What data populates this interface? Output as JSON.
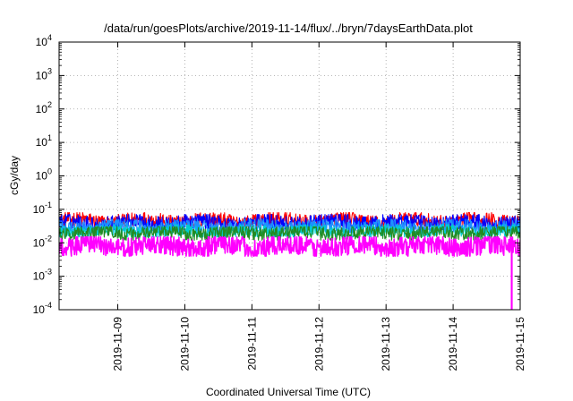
{
  "chart_data": {
    "type": "line",
    "title": "/data/run/goesPlots/archive/2019-11-14/flux/../bryn/7daysEarthData.plot",
    "xlabel": "Coordinated Universal Time (UTC)",
    "ylabel": "cGy/day",
    "yscale": "log",
    "ylim": [
      0.0001,
      10000
    ],
    "y_ticks": [
      {
        "base": "10",
        "exp": "-4",
        "value": 0.0001
      },
      {
        "base": "10",
        "exp": "-3",
        "value": 0.001
      },
      {
        "base": "10",
        "exp": "-2",
        "value": 0.01
      },
      {
        "base": "10",
        "exp": "-1",
        "value": 0.1
      },
      {
        "base": "10",
        "exp": "0",
        "value": 1
      },
      {
        "base": "10",
        "exp": "1",
        "value": 10
      },
      {
        "base": "10",
        "exp": "2",
        "value": 100
      },
      {
        "base": "10",
        "exp": "3",
        "value": 1000
      },
      {
        "base": "10",
        "exp": "4",
        "value": 10000
      }
    ],
    "xlim": [
      "2019-11-08T03:00",
      "2019-11-15T00:00"
    ],
    "x_ticks": [
      "2019-11-09",
      "2019-11-10",
      "2019-11-11",
      "2019-11-12",
      "2019-11-13",
      "2019-11-14",
      "2019-11-15"
    ],
    "grid": true,
    "legend": "none",
    "series": [
      {
        "color": "#ff0000",
        "typical_y": 0.045,
        "range_y": [
          0.03,
          0.08
        ]
      },
      {
        "color": "#0000ff",
        "typical_y": 0.04,
        "range_y": [
          0.025,
          0.07
        ]
      },
      {
        "color": "#1e90ff",
        "typical_y": 0.03,
        "range_y": [
          0.02,
          0.05
        ]
      },
      {
        "color": "#00ced1",
        "typical_y": 0.022,
        "range_y": [
          0.015,
          0.035
        ]
      },
      {
        "color": "#228b22",
        "typical_y": 0.02,
        "range_y": [
          0.012,
          0.03
        ]
      },
      {
        "color": "#ff00ff",
        "typical_y": 0.008,
        "range_y": [
          0.004,
          0.015
        ],
        "dropout": {
          "x": "2019-11-14T21:00",
          "y": 0.0001
        }
      }
    ]
  }
}
